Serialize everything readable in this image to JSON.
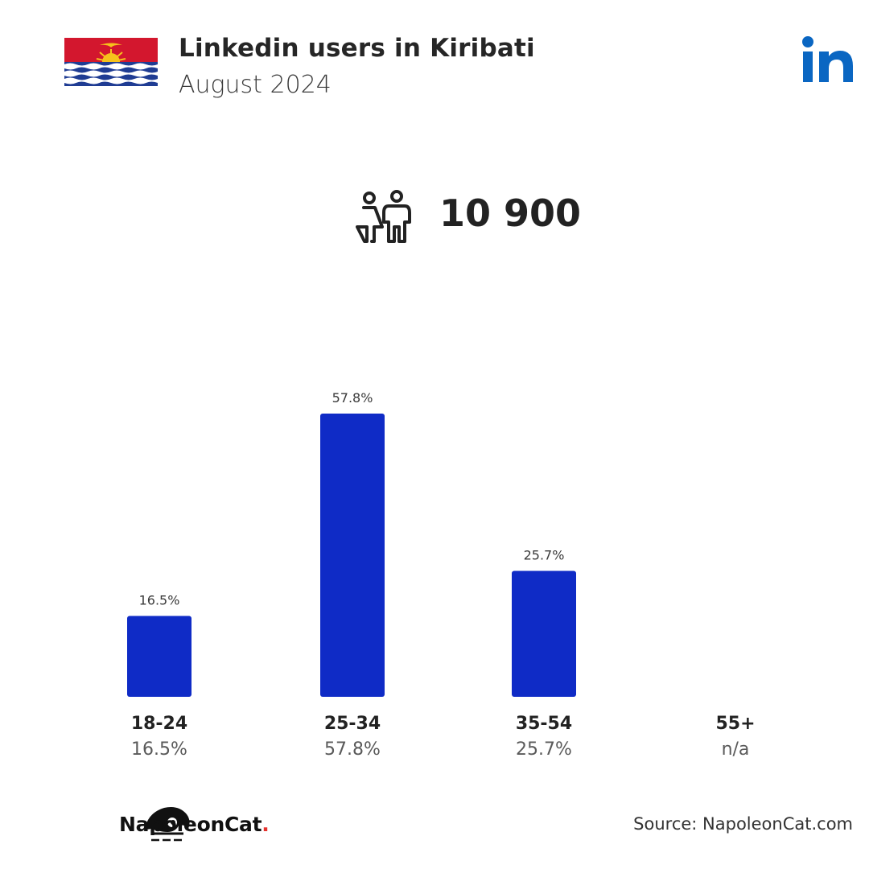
{
  "header": {
    "title": "Linkedin users in Kiribati",
    "subtitle": "August 2024",
    "flag_icon": "kiribati-flag-icon",
    "platform_icon": "linkedin-icon"
  },
  "summary": {
    "users_icon": "people-icon",
    "total_users": "10 900"
  },
  "chart_data": {
    "type": "bar",
    "categories": [
      "18-24",
      "25-34",
      "35-54",
      "55+"
    ],
    "values": [
      16.5,
      57.8,
      25.7,
      null
    ],
    "value_labels": [
      "16.5%",
      "57.8%",
      "25.7%",
      "n/a"
    ],
    "ylim": [
      0,
      57.8
    ],
    "grid": false,
    "bar_color": "#0f2bc6"
  },
  "footer": {
    "brand_name": "NapoleonCat",
    "brand_dot": ".",
    "brand_icon": "napoleoncat-logo-icon",
    "source": "Source: NapoleonCat.com"
  },
  "colors": {
    "accent": "#0f2bc6",
    "linkedin": "#0a66c2",
    "brand_dot": "#e5322d"
  }
}
